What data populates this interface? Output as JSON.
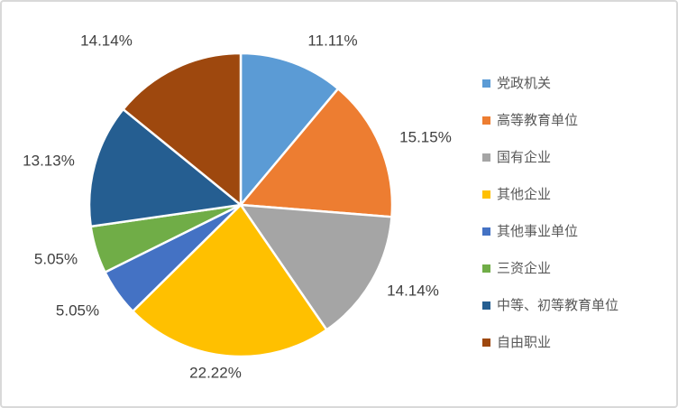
{
  "chart_data": {
    "type": "pie",
    "title": "",
    "legend_position": "right",
    "start_angle_deg": 0,
    "direction": "clockwise",
    "categories": [
      "党政机关",
      "高等教育单位",
      "国有企业",
      "其他企业",
      "其他事业单位",
      "三资企业",
      "中等、初等教育单位",
      "自由职业"
    ],
    "values": [
      11.11,
      15.15,
      14.14,
      22.22,
      5.05,
      5.05,
      13.13,
      14.14
    ],
    "data_labels": [
      "11.11%",
      "15.15%",
      "14.14%",
      "22.22%",
      "5.05%",
      "5.05%",
      "13.13%",
      "14.14%"
    ],
    "colors": [
      "#5B9BD5",
      "#ED7D31",
      "#A5A5A5",
      "#FFC000",
      "#4472C4",
      "#70AD47",
      "#255E91",
      "#9E480E"
    ],
    "slice_border_color": "#FFFFFF"
  },
  "style": {
    "data_label_color": "#404040",
    "legend_text_color": "#595959",
    "background": "#FFFFFF",
    "frame_border_color": "#D9D9D9"
  }
}
